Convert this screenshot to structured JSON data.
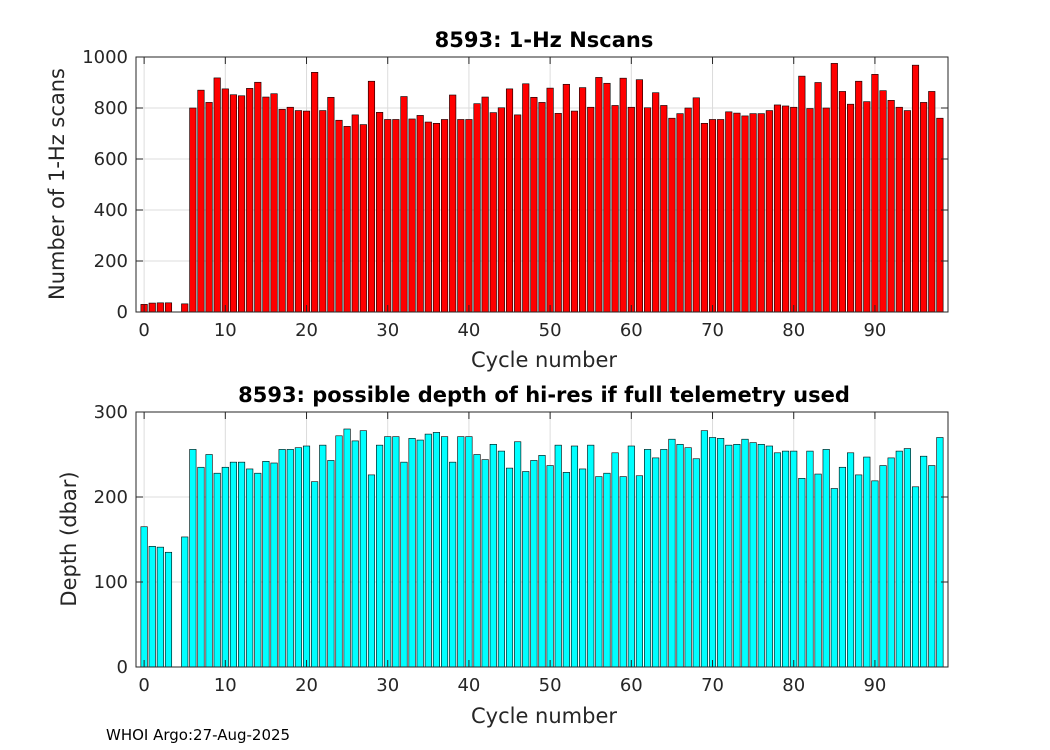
{
  "footer_text": "WHOI Argo:27-Aug-2025",
  "chart_data": [
    {
      "type": "bar",
      "title": "8593: 1-Hz Nscans",
      "xlabel": "Cycle number",
      "ylabel": "Number of 1-Hz scans",
      "xlim": [
        -1,
        99
      ],
      "ylim": [
        0,
        1000
      ],
      "xticks": [
        0,
        10,
        20,
        30,
        40,
        50,
        60,
        70,
        80,
        90
      ],
      "yticks": [
        0,
        200,
        400,
        600,
        800,
        1000
      ],
      "grid": true,
      "bar_color": "#ff0000",
      "x": [
        0,
        1,
        2,
        3,
        5,
        6,
        7,
        8,
        9,
        10,
        11,
        12,
        13,
        14,
        15,
        16,
        17,
        18,
        19,
        20,
        21,
        22,
        23,
        24,
        25,
        26,
        27,
        28,
        29,
        30,
        31,
        32,
        33,
        34,
        35,
        36,
        37,
        38,
        39,
        40,
        41,
        42,
        43,
        44,
        45,
        46,
        47,
        48,
        49,
        50,
        51,
        52,
        53,
        54,
        55,
        56,
        57,
        58,
        59,
        60,
        61,
        62,
        63,
        64,
        65,
        66,
        67,
        68,
        69,
        70,
        71,
        72,
        73,
        74,
        75,
        76,
        77,
        78,
        79,
        80,
        81,
        82,
        83,
        84,
        85,
        86,
        87,
        88,
        89,
        90,
        91,
        92,
        93,
        94,
        95,
        96,
        97,
        98
      ],
      "values": [
        30,
        35,
        36,
        36,
        32,
        800,
        870,
        822,
        918,
        875,
        852,
        848,
        877,
        901,
        843,
        856,
        795,
        803,
        790,
        788,
        940,
        790,
        842,
        752,
        728,
        773,
        735,
        905,
        783,
        755,
        755,
        845,
        757,
        771,
        745,
        740,
        755,
        851,
        755,
        755,
        817,
        843,
        782,
        801,
        875,
        773,
        895,
        842,
        822,
        878,
        779,
        893,
        788,
        880,
        803,
        920,
        897,
        810,
        917,
        803,
        911,
        801,
        860,
        810,
        760,
        778,
        800,
        840,
        740,
        755,
        755,
        785,
        780,
        769,
        778,
        778,
        790,
        812,
        808,
        803,
        925,
        798,
        900,
        800,
        975,
        865,
        815,
        905,
        825,
        932,
        868,
        830,
        803,
        790,
        968,
        822,
        865,
        760
      ]
    },
    {
      "type": "bar",
      "title": "8593: possible depth of hi-res if full telemetry used",
      "xlabel": "Cycle number",
      "ylabel": "Depth (dbar)",
      "xlim": [
        -1,
        99
      ],
      "ylim": [
        0,
        300
      ],
      "xticks": [
        0,
        10,
        20,
        30,
        40,
        50,
        60,
        70,
        80,
        90
      ],
      "yticks": [
        0,
        100,
        200,
        300
      ],
      "grid": true,
      "bar_color": "#00ffff",
      "x": [
        0,
        1,
        2,
        3,
        5,
        6,
        7,
        8,
        9,
        10,
        11,
        12,
        13,
        14,
        15,
        16,
        17,
        18,
        19,
        20,
        21,
        22,
        23,
        24,
        25,
        26,
        27,
        28,
        29,
        30,
        31,
        32,
        33,
        34,
        35,
        36,
        37,
        38,
        39,
        40,
        41,
        42,
        43,
        44,
        45,
        46,
        47,
        48,
        49,
        50,
        51,
        52,
        53,
        54,
        55,
        56,
        57,
        58,
        59,
        60,
        61,
        62,
        63,
        64,
        65,
        66,
        67,
        68,
        69,
        70,
        71,
        72,
        73,
        74,
        75,
        76,
        77,
        78,
        79,
        80,
        81,
        82,
        83,
        84,
        85,
        86,
        87,
        88,
        89,
        90,
        91,
        92,
        93,
        94,
        95,
        96,
        97,
        98
      ],
      "values": [
        165,
        142,
        141,
        135,
        153,
        256,
        235,
        250,
        228,
        235,
        241,
        241,
        233,
        228,
        242,
        240,
        256,
        256,
        258,
        260,
        218,
        261,
        243,
        272,
        280,
        266,
        278,
        226,
        261,
        271,
        271,
        241,
        269,
        267,
        274,
        276,
        271,
        241,
        271,
        271,
        250,
        244,
        262,
        254,
        234,
        265,
        230,
        243,
        249,
        237,
        261,
        229,
        260,
        233,
        261,
        224,
        228,
        252,
        224,
        260,
        225,
        256,
        246,
        256,
        268,
        262,
        258,
        245,
        278,
        270,
        269,
        261,
        262,
        268,
        264,
        262,
        260,
        252,
        254,
        254,
        222,
        254,
        227,
        256,
        210,
        235,
        252,
        226,
        247,
        219,
        237,
        246,
        254,
        257,
        212,
        248,
        237,
        270
      ]
    }
  ]
}
